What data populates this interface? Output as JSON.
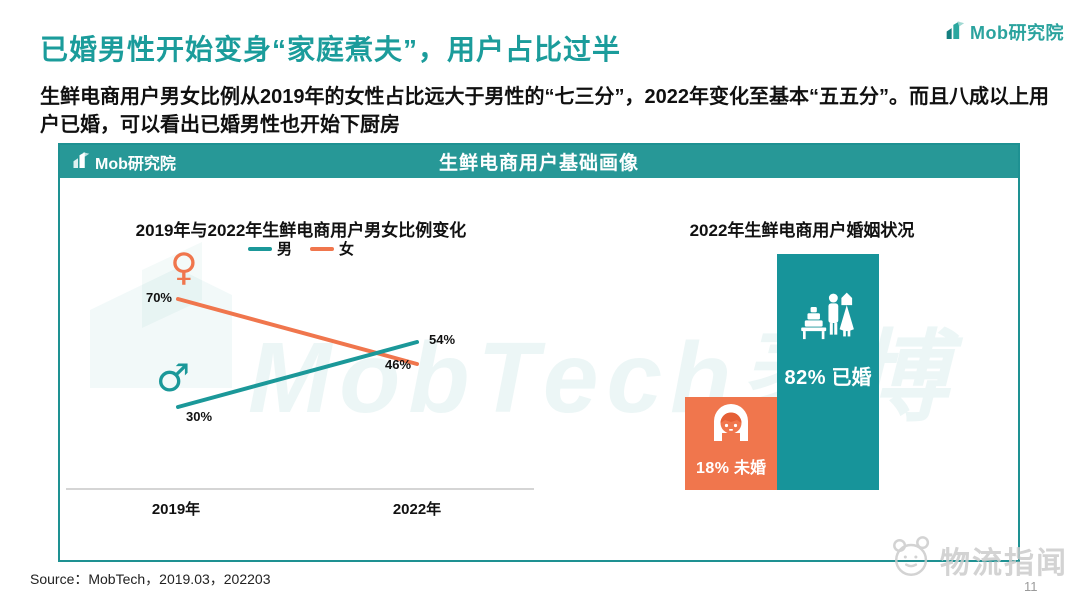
{
  "page": {
    "title": "已婚男性开始变身“家庭煮夫”，用户占比过半",
    "subtitle_lines": [
      "生鲜电商用户男女比例从2019年的女性占比远大于男性的“七三分”，2022年变化至基本“五五",
      "分”。而且八成以上用户已婚，可以看出已婚男性也开始下厨房"
    ],
    "brand": "Mob研究院",
    "source": "Source：MobTech，2019.03，202203",
    "page_number": "11",
    "footer_watermark_text": "物流指闻"
  },
  "card": {
    "header": {
      "logo_text": "Mob研究院",
      "title": "生鲜电商用户基础画像"
    },
    "watermark": "MobTech袤博"
  },
  "icons": {
    "female_symbol": "♀",
    "male_symbol": "♂"
  },
  "colors": {
    "teal": "#17949a",
    "teal_header": "#279897",
    "orange": "#f0764d",
    "title_teal": "#1b9c9b",
    "axis_gray": "#d5d5d5"
  },
  "chart_data": [
    {
      "type": "line",
      "title": "2019年与2022年生鲜电商用户男女比例变化",
      "x": [
        "2019年",
        "2022年"
      ],
      "series": [
        {
          "name": "男",
          "color": "#1b9899",
          "values": [
            30,
            54
          ]
        },
        {
          "name": "女",
          "color": "#f0764d",
          "values": [
            70,
            46
          ]
        }
      ],
      "point_labels": {
        "male": [
          "30%",
          "54%"
        ],
        "female": [
          "70%",
          "46%"
        ]
      },
      "ylim": [
        0,
        100
      ],
      "grid": false,
      "legend_position": "top"
    },
    {
      "type": "bar",
      "title": "2022年生鲜电商用户婚姻状况",
      "categories": [
        "未婚",
        "已婚"
      ],
      "values": [
        18,
        82
      ],
      "colors": [
        "#f0764d",
        "#17949a"
      ],
      "bars": [
        {
          "pct": "18%",
          "label": "未婚"
        },
        {
          "pct": "82%",
          "label": "已婚"
        }
      ]
    }
  ]
}
